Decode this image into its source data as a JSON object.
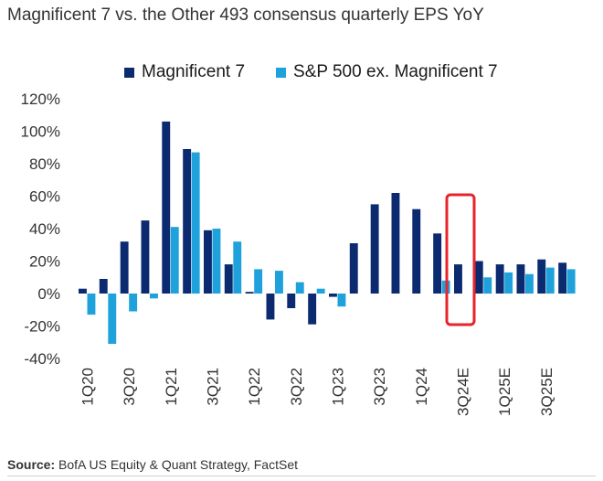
{
  "title": "Magnificent 7 vs. the Other 493 consensus quarterly EPS YoY",
  "source_label": "Source:",
  "source_text": "BofA US Equity & Quant Strategy, FactSet",
  "colors": {
    "series1": "#0b2a6f",
    "series2": "#1fa2dc",
    "highlight": "#e8232a",
    "axis_text": "#333333"
  },
  "chart_data": {
    "type": "bar",
    "title": "Magnificent 7 vs. the Other 493 consensus quarterly EPS YoY",
    "xlabel": "",
    "ylabel": "",
    "ylim": [
      -40,
      120
    ],
    "yticks": [
      -40,
      -20,
      0,
      20,
      40,
      60,
      80,
      100,
      120
    ],
    "ytick_labels": [
      "-40%",
      "-20%",
      "0%",
      "20%",
      "40%",
      "60%",
      "80%",
      "100%",
      "120%"
    ],
    "legend_position": "top",
    "grid": false,
    "categories": [
      "1Q20",
      "2Q20",
      "3Q20",
      "4Q20",
      "1Q21",
      "2Q21",
      "3Q21",
      "4Q21",
      "1Q22",
      "2Q22",
      "3Q22",
      "4Q22",
      "1Q23",
      "2Q23",
      "3Q23",
      "4Q23",
      "1Q24",
      "2Q24",
      "3Q24E",
      "4Q24E",
      "1Q25E",
      "2Q25E",
      "3Q25E",
      "4Q25E"
    ],
    "xtick_labels": [
      "1Q20",
      "3Q20",
      "1Q21",
      "3Q21",
      "1Q22",
      "3Q22",
      "1Q23",
      "3Q23",
      "1Q24",
      "3Q24E",
      "1Q25E",
      "3Q25E"
    ],
    "series": [
      {
        "name": "Magnificent 7",
        "values": [
          3,
          9,
          32,
          45,
          106,
          89,
          39,
          18,
          1,
          -16,
          -9,
          -19,
          -2,
          31,
          55,
          62,
          52,
          37,
          18,
          20,
          18,
          18,
          21,
          19
        ]
      },
      {
        "name": "S&P 500 ex. Magnificent 7",
        "values": [
          -13,
          -31,
          -11,
          -3,
          41,
          87,
          40,
          32,
          15,
          14,
          7,
          3,
          -8,
          0,
          0,
          0,
          0,
          8,
          0,
          10,
          13,
          12,
          16,
          15
        ]
      }
    ],
    "highlight_category": "3Q24E"
  }
}
